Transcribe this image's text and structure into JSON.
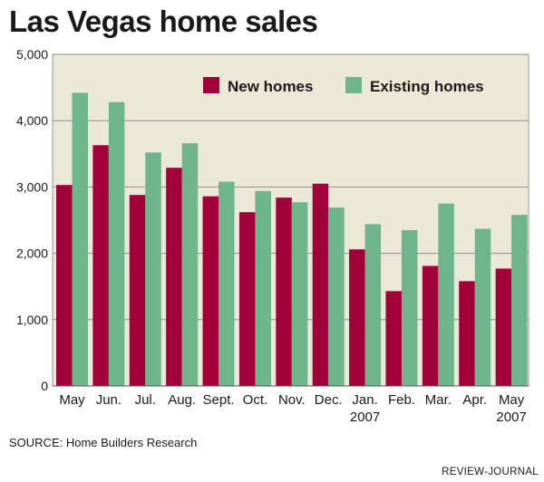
{
  "header": {
    "title": "Las Vegas home sales"
  },
  "footer": {
    "source": "SOURCE: Home Builders Research",
    "credit": "REVIEW-JOURNAL"
  },
  "chart_data": {
    "type": "bar",
    "title": "Las Vegas home sales",
    "categories": [
      [
        "May"
      ],
      [
        "Jun."
      ],
      [
        "Jul."
      ],
      [
        "Aug."
      ],
      [
        "Sept."
      ],
      [
        "Oct."
      ],
      [
        "Nov."
      ],
      [
        "Dec."
      ],
      [
        "Jan.",
        "2007"
      ],
      [
        "Feb."
      ],
      [
        "Mar."
      ],
      [
        "Apr."
      ],
      [
        "May",
        "2007"
      ]
    ],
    "series": [
      {
        "name": "New homes",
        "color": "#a1003a",
        "values": [
          3030,
          3630,
          2880,
          3290,
          2860,
          2620,
          2840,
          3050,
          2060,
          1430,
          1810,
          1580,
          1770
        ]
      },
      {
        "name": "Existing homes",
        "color": "#6fb58c",
        "values": [
          4420,
          4280,
          3520,
          3660,
          3080,
          2940,
          2770,
          2690,
          2440,
          2350,
          2750,
          2370,
          2580
        ]
      }
    ],
    "ylim": [
      0,
      5000
    ],
    "yticks": [
      0,
      1000,
      2000,
      3000,
      4000,
      5000
    ],
    "ytick_labels": [
      "0",
      "1,000",
      "2,000",
      "3,000",
      "4,000",
      "5,000"
    ],
    "grid": true,
    "legend": "top-right",
    "plot_background": "#ece8d8"
  }
}
